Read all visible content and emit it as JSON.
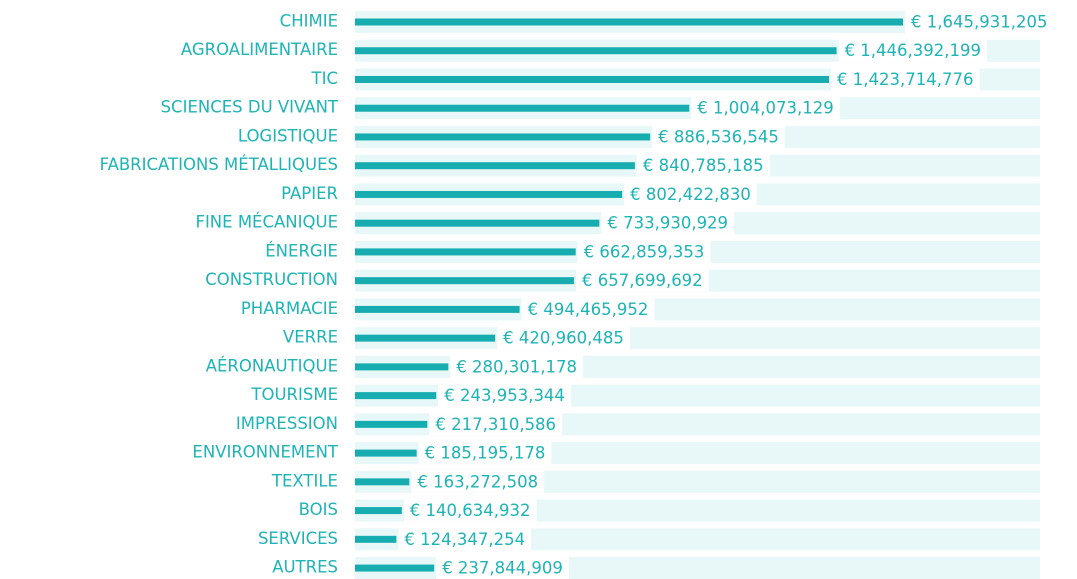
{
  "chart_data": {
    "type": "barh",
    "categories": [
      "CHIMIE",
      "AGROALIMENTAIRE",
      "TIC",
      "SCIENCES DU VIVANT",
      "LOGISTIQUE",
      "FABRICATIONS MÉTALLIQUES",
      "PAPIER",
      "FINE MÉCANIQUE",
      "ÉNERGIE",
      "CONSTRUCTION",
      "PHARMACIE",
      "VERRE",
      "AÉRONAUTIQUE",
      "TOURISME",
      "IMPRESSION",
      "ENVIRONNEMENT",
      "TEXTILE",
      "BOIS",
      "SERVICES",
      "AUTRES"
    ],
    "values": [
      1645931205,
      1446392199,
      1423714776,
      1004073129,
      886536545,
      840785185,
      802422830,
      733930929,
      662859353,
      657699692,
      494465952,
      420960485,
      280301178,
      243953344,
      217310586,
      185195178,
      163272508,
      140634932,
      124347254,
      237844909
    ],
    "value_labels": [
      "€ 1,645,931,205",
      "€ 1,446,392,199",
      "€ 1,423,714,776",
      "€ 1,004,073,129",
      "€ 886,536,545",
      "€ 840,785,185",
      "€ 802,422,830",
      "€ 733,930,929",
      "€ 662,859,353",
      "€ 657,699,692",
      "€ 494,465,952",
      "€ 420,960,485",
      "€ 280,301,178",
      "€ 243,953,344",
      "€ 217,310,586",
      "€ 185,195,178",
      "€ 163,272,508",
      "€ 140,634,932",
      "€ 124,347,254",
      "€ 237,844,909"
    ],
    "color": "#17adb0"
  }
}
